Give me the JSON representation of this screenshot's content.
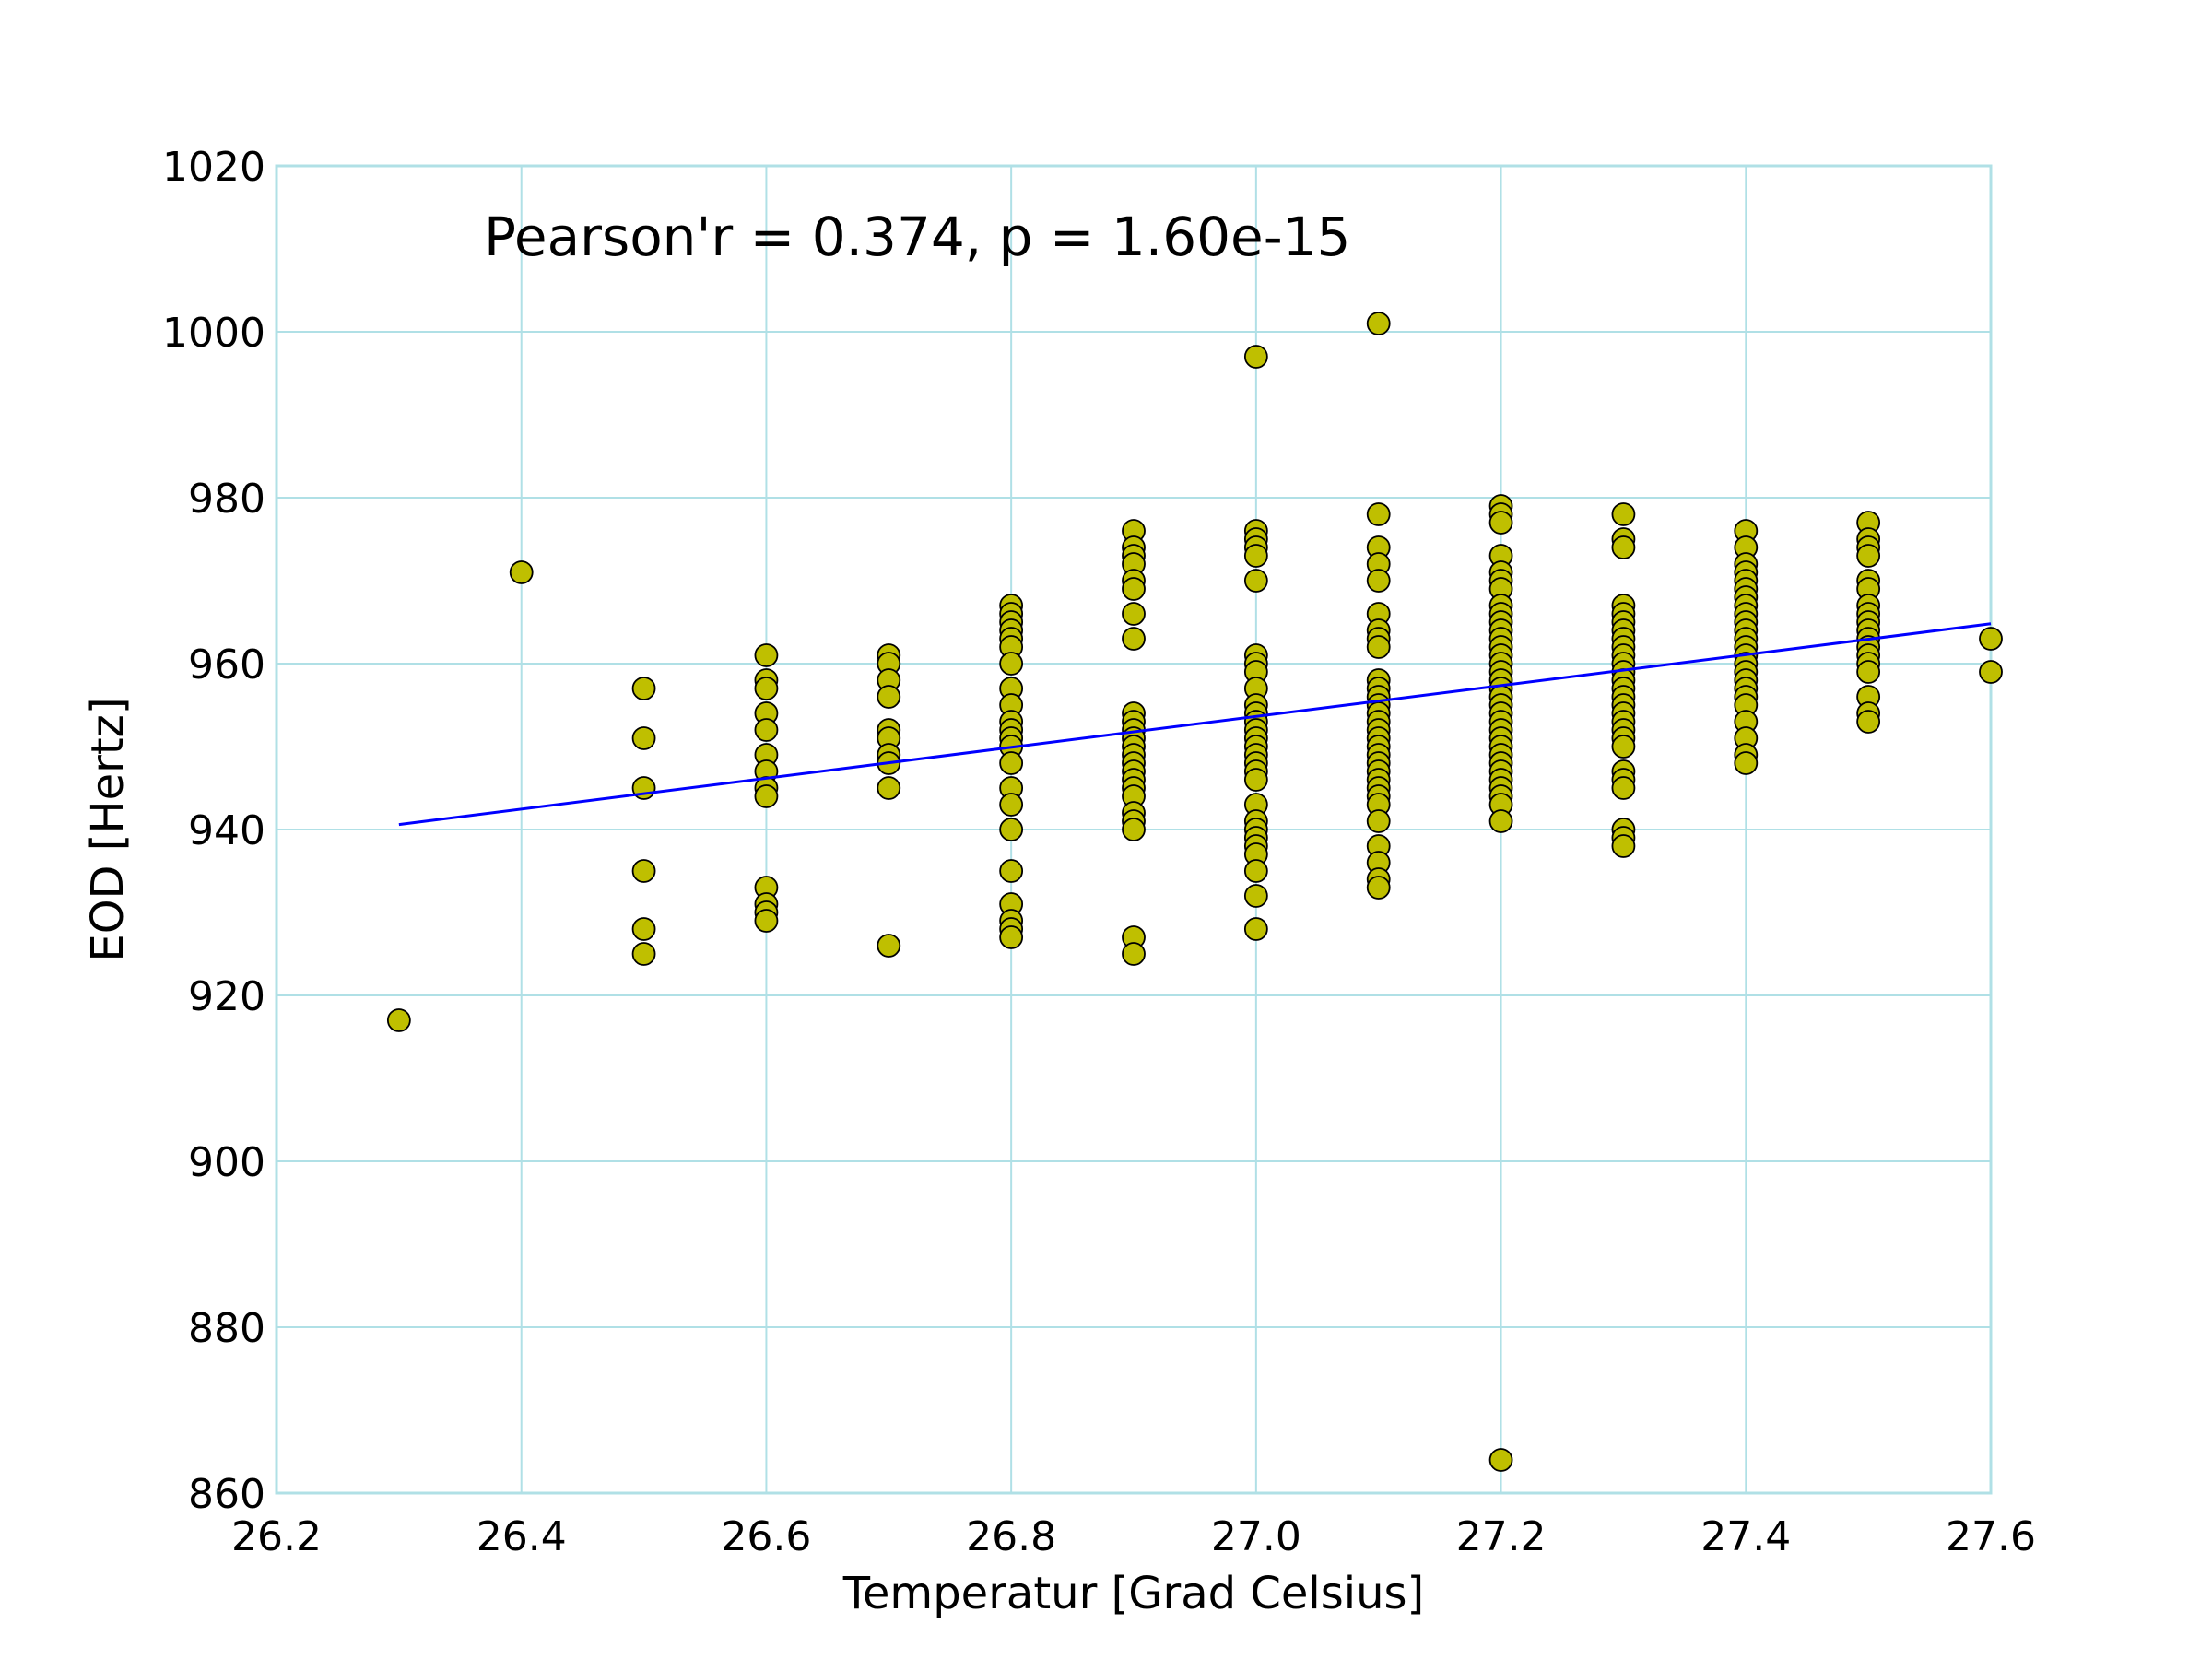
{
  "chart_data": {
    "type": "scatter",
    "xlabel": "Temperatur [Grad Celsius]",
    "ylabel": "EOD [Hertz]",
    "annotation": "Pearson'r = 0.374, p = 1.60e-15",
    "xlim": [
      26.2,
      27.6
    ],
    "ylim": [
      860,
      1020
    ],
    "xticks": [
      "26.2",
      "26.4",
      "26.6",
      "26.8",
      "27.0",
      "27.2",
      "27.4",
      "27.6"
    ],
    "yticks": [
      "860",
      "880",
      "900",
      "920",
      "940",
      "960",
      "980",
      "1000",
      "1020"
    ],
    "grid": true,
    "colors": {
      "grid": "#b0e0e6",
      "marker_fill": "#bfbf00",
      "marker_edge": "#000000",
      "fit_line": "#0000ff"
    },
    "fit_line": {
      "x": [
        26.3,
        27.6
      ],
      "y": [
        940.6,
        964.8
      ]
    },
    "series": [
      {
        "points": [
          [
            26.3,
            917
          ],
          [
            26.4,
            971
          ],
          [
            26.5,
            957
          ],
          [
            26.5,
            951
          ],
          [
            26.5,
            945
          ],
          [
            26.5,
            935
          ],
          [
            26.5,
            928
          ],
          [
            26.5,
            925
          ],
          [
            26.6,
            961
          ],
          [
            26.6,
            958
          ],
          [
            26.6,
            957
          ],
          [
            26.6,
            954
          ],
          [
            26.6,
            952
          ],
          [
            26.6,
            949
          ],
          [
            26.6,
            947
          ],
          [
            26.6,
            945
          ],
          [
            26.6,
            944
          ],
          [
            26.6,
            933
          ],
          [
            26.6,
            931
          ],
          [
            26.6,
            930
          ],
          [
            26.6,
            929
          ],
          [
            26.7,
            961
          ],
          [
            26.7,
            960
          ],
          [
            26.7,
            958
          ],
          [
            26.7,
            956
          ],
          [
            26.7,
            952
          ],
          [
            26.7,
            951
          ],
          [
            26.7,
            949
          ],
          [
            26.7,
            948
          ],
          [
            26.7,
            945
          ],
          [
            26.7,
            926
          ],
          [
            26.8,
            967
          ],
          [
            26.8,
            966
          ],
          [
            26.8,
            965
          ],
          [
            26.8,
            964
          ],
          [
            26.8,
            963
          ],
          [
            26.8,
            962
          ],
          [
            26.8,
            960
          ],
          [
            26.8,
            957
          ],
          [
            26.8,
            955
          ],
          [
            26.8,
            953
          ],
          [
            26.8,
            952
          ],
          [
            26.8,
            951
          ],
          [
            26.8,
            950
          ],
          [
            26.8,
            948
          ],
          [
            26.8,
            945
          ],
          [
            26.8,
            943
          ],
          [
            26.8,
            940
          ],
          [
            26.8,
            935
          ],
          [
            26.8,
            931
          ],
          [
            26.8,
            929
          ],
          [
            26.8,
            928
          ],
          [
            26.8,
            927
          ],
          [
            26.9,
            976
          ],
          [
            26.9,
            974
          ],
          [
            26.9,
            973
          ],
          [
            26.9,
            972
          ],
          [
            26.9,
            970
          ],
          [
            26.9,
            969
          ],
          [
            26.9,
            966
          ],
          [
            26.9,
            963
          ],
          [
            26.9,
            954
          ],
          [
            26.9,
            953
          ],
          [
            26.9,
            952
          ],
          [
            26.9,
            951
          ],
          [
            26.9,
            950
          ],
          [
            26.9,
            949
          ],
          [
            26.9,
            948
          ],
          [
            26.9,
            947
          ],
          [
            26.9,
            946
          ],
          [
            26.9,
            945
          ],
          [
            26.9,
            944
          ],
          [
            26.9,
            942
          ],
          [
            26.9,
            941
          ],
          [
            26.9,
            940
          ],
          [
            26.9,
            927
          ],
          [
            26.9,
            925
          ],
          [
            27.0,
            997
          ],
          [
            27.0,
            976
          ],
          [
            27.0,
            975
          ],
          [
            27.0,
            974
          ],
          [
            27.0,
            973
          ],
          [
            27.0,
            970
          ],
          [
            27.0,
            961
          ],
          [
            27.0,
            960
          ],
          [
            27.0,
            959
          ],
          [
            27.0,
            957
          ],
          [
            27.0,
            955
          ],
          [
            27.0,
            954
          ],
          [
            27.0,
            953
          ],
          [
            27.0,
            952
          ],
          [
            27.0,
            951
          ],
          [
            27.0,
            950
          ],
          [
            27.0,
            949
          ],
          [
            27.0,
            948
          ],
          [
            27.0,
            947
          ],
          [
            27.0,
            946
          ],
          [
            27.0,
            943
          ],
          [
            27.0,
            941
          ],
          [
            27.0,
            940
          ],
          [
            27.0,
            939
          ],
          [
            27.0,
            938
          ],
          [
            27.0,
            937
          ],
          [
            27.0,
            935
          ],
          [
            27.0,
            932
          ],
          [
            27.0,
            928
          ],
          [
            27.1,
            1001
          ],
          [
            27.1,
            978
          ],
          [
            27.1,
            974
          ],
          [
            27.1,
            972
          ],
          [
            27.1,
            970
          ],
          [
            27.1,
            966
          ],
          [
            27.1,
            964
          ],
          [
            27.1,
            963
          ],
          [
            27.1,
            962
          ],
          [
            27.1,
            958
          ],
          [
            27.1,
            957
          ],
          [
            27.1,
            956
          ],
          [
            27.1,
            955
          ],
          [
            27.1,
            954
          ],
          [
            27.1,
            953
          ],
          [
            27.1,
            952
          ],
          [
            27.1,
            951
          ],
          [
            27.1,
            950
          ],
          [
            27.1,
            949
          ],
          [
            27.1,
            948
          ],
          [
            27.1,
            947
          ],
          [
            27.1,
            946
          ],
          [
            27.1,
            945
          ],
          [
            27.1,
            944
          ],
          [
            27.1,
            943
          ],
          [
            27.1,
            941
          ],
          [
            27.1,
            938
          ],
          [
            27.1,
            936
          ],
          [
            27.1,
            934
          ],
          [
            27.1,
            933
          ],
          [
            27.2,
            979
          ],
          [
            27.2,
            978
          ],
          [
            27.2,
            977
          ],
          [
            27.2,
            973
          ],
          [
            27.2,
            971
          ],
          [
            27.2,
            970
          ],
          [
            27.2,
            969
          ],
          [
            27.2,
            967
          ],
          [
            27.2,
            966
          ],
          [
            27.2,
            965
          ],
          [
            27.2,
            964
          ],
          [
            27.2,
            963
          ],
          [
            27.2,
            962
          ],
          [
            27.2,
            961
          ],
          [
            27.2,
            960
          ],
          [
            27.2,
            959
          ],
          [
            27.2,
            958
          ],
          [
            27.2,
            957
          ],
          [
            27.2,
            956
          ],
          [
            27.2,
            955
          ],
          [
            27.2,
            954
          ],
          [
            27.2,
            953
          ],
          [
            27.2,
            952
          ],
          [
            27.2,
            951
          ],
          [
            27.2,
            950
          ],
          [
            27.2,
            949
          ],
          [
            27.2,
            948
          ],
          [
            27.2,
            947
          ],
          [
            27.2,
            946
          ],
          [
            27.2,
            945
          ],
          [
            27.2,
            944
          ],
          [
            27.2,
            943
          ],
          [
            27.2,
            941
          ],
          [
            27.2,
            864
          ],
          [
            27.3,
            978
          ],
          [
            27.3,
            975
          ],
          [
            27.3,
            974
          ],
          [
            27.3,
            967
          ],
          [
            27.3,
            966
          ],
          [
            27.3,
            965
          ],
          [
            27.3,
            964
          ],
          [
            27.3,
            963
          ],
          [
            27.3,
            962
          ],
          [
            27.3,
            961
          ],
          [
            27.3,
            960
          ],
          [
            27.3,
            959
          ],
          [
            27.3,
            958
          ],
          [
            27.3,
            957
          ],
          [
            27.3,
            956
          ],
          [
            27.3,
            955
          ],
          [
            27.3,
            954
          ],
          [
            27.3,
            953
          ],
          [
            27.3,
            952
          ],
          [
            27.3,
            951
          ],
          [
            27.3,
            950
          ],
          [
            27.3,
            947
          ],
          [
            27.3,
            946
          ],
          [
            27.3,
            945
          ],
          [
            27.3,
            940
          ],
          [
            27.3,
            939
          ],
          [
            27.3,
            938
          ],
          [
            27.4,
            976
          ],
          [
            27.4,
            974
          ],
          [
            27.4,
            972
          ],
          [
            27.4,
            971
          ],
          [
            27.4,
            970
          ],
          [
            27.4,
            969
          ],
          [
            27.4,
            968
          ],
          [
            27.4,
            967
          ],
          [
            27.4,
            966
          ],
          [
            27.4,
            965
          ],
          [
            27.4,
            964
          ],
          [
            27.4,
            963
          ],
          [
            27.4,
            962
          ],
          [
            27.4,
            961
          ],
          [
            27.4,
            960
          ],
          [
            27.4,
            959
          ],
          [
            27.4,
            958
          ],
          [
            27.4,
            957
          ],
          [
            27.4,
            956
          ],
          [
            27.4,
            955
          ],
          [
            27.4,
            953
          ],
          [
            27.4,
            951
          ],
          [
            27.4,
            949
          ],
          [
            27.4,
            948
          ],
          [
            27.5,
            977
          ],
          [
            27.5,
            975
          ],
          [
            27.5,
            974
          ],
          [
            27.5,
            973
          ],
          [
            27.5,
            970
          ],
          [
            27.5,
            969
          ],
          [
            27.5,
            967
          ],
          [
            27.5,
            966
          ],
          [
            27.5,
            965
          ],
          [
            27.5,
            964
          ],
          [
            27.5,
            963
          ],
          [
            27.5,
            962
          ],
          [
            27.5,
            961
          ],
          [
            27.5,
            960
          ],
          [
            27.5,
            959
          ],
          [
            27.5,
            956
          ],
          [
            27.5,
            954
          ],
          [
            27.5,
            953
          ],
          [
            27.6,
            963
          ],
          [
            27.6,
            959
          ]
        ]
      }
    ]
  }
}
